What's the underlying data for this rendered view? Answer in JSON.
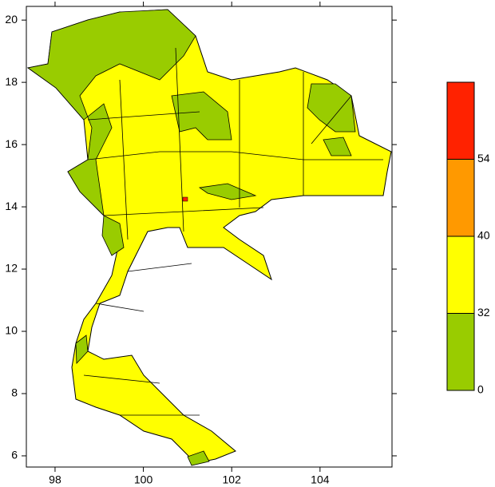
{
  "map": {
    "lon_range": [
      97.35,
      105.63
    ],
    "lat_range": [
      5.64,
      20.44
    ],
    "lon_ticks": [
      98,
      100,
      102,
      104
    ],
    "lat_ticks": [
      6,
      8,
      10,
      12,
      14,
      16,
      18,
      20
    ],
    "legend": {
      "levels": [
        0,
        32,
        40,
        54
      ],
      "colors": [
        "#99cc00",
        "#ffff00",
        "#ff9900",
        "#ff2200"
      ]
    }
  }
}
